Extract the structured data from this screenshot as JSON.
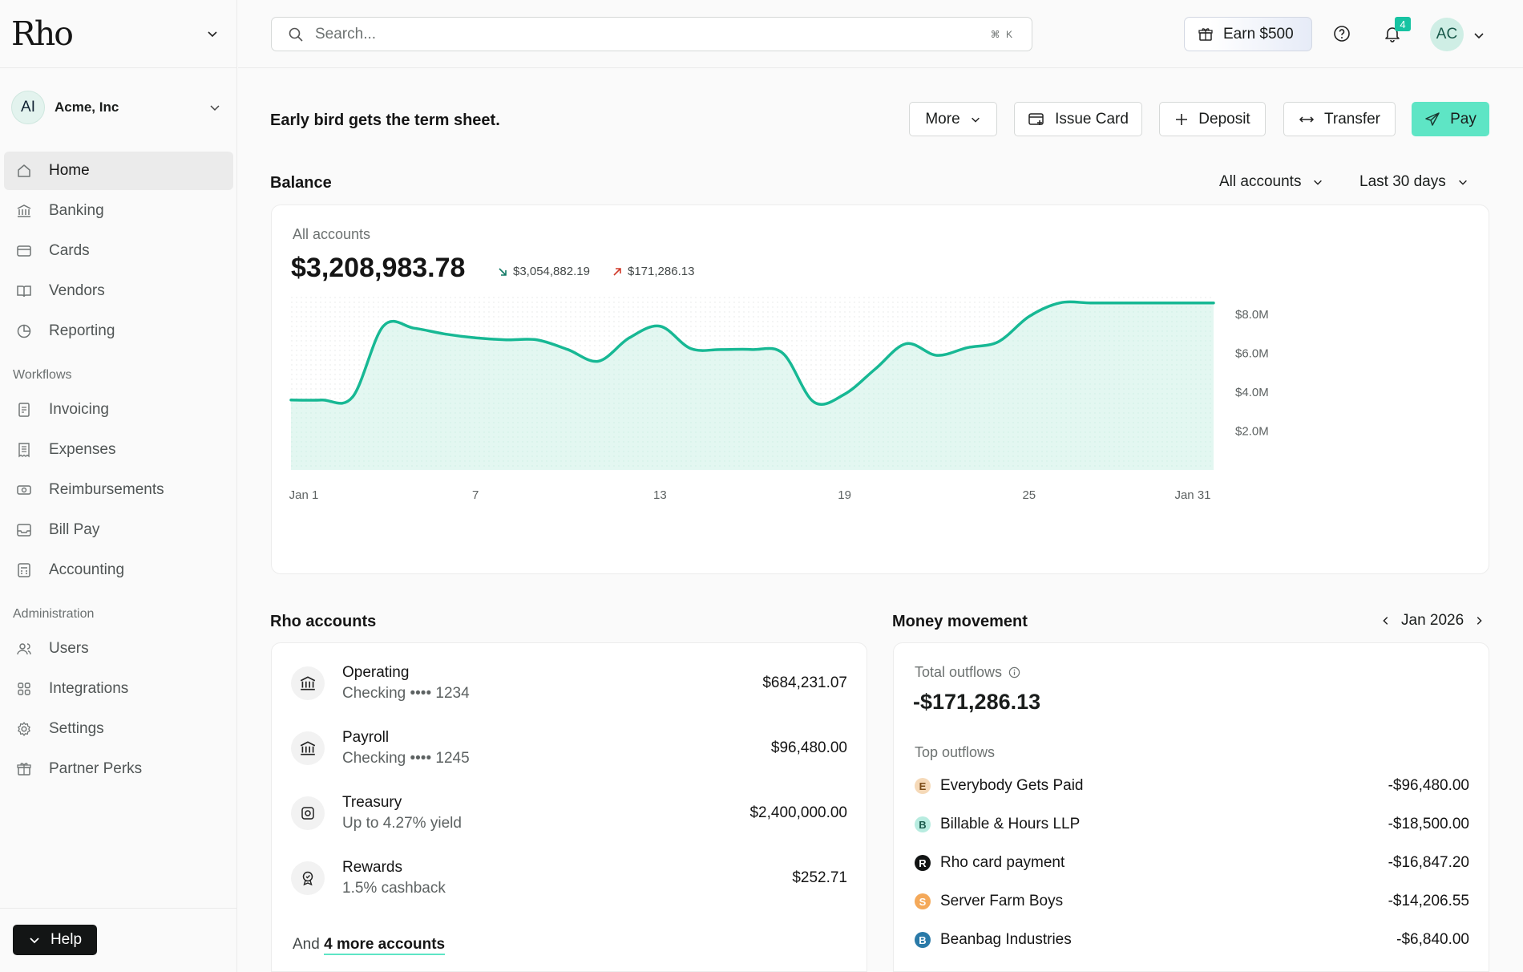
{
  "app": {
    "logo": "Rho"
  },
  "org": {
    "initials": "AI",
    "name": "Acme, Inc"
  },
  "nav": {
    "main": [
      {
        "label": "Home",
        "icon": "home-icon",
        "active": true
      },
      {
        "label": "Banking",
        "icon": "bank-icon"
      },
      {
        "label": "Cards",
        "icon": "card-icon"
      },
      {
        "label": "Vendors",
        "icon": "book-icon"
      },
      {
        "label": "Reporting",
        "icon": "pie-icon"
      }
    ],
    "workflows_title": "Workflows",
    "workflows": [
      {
        "label": "Invoicing",
        "icon": "invoice-icon"
      },
      {
        "label": "Expenses",
        "icon": "receipt-icon"
      },
      {
        "label": "Reimbursements",
        "icon": "reimburse-icon"
      },
      {
        "label": "Bill Pay",
        "icon": "inbox-icon"
      },
      {
        "label": "Accounting",
        "icon": "calculator-icon"
      }
    ],
    "admin_title": "Administration",
    "admin": [
      {
        "label": "Users",
        "icon": "users-icon"
      },
      {
        "label": "Integrations",
        "icon": "grid-icon"
      },
      {
        "label": "Settings",
        "icon": "gear-icon"
      },
      {
        "label": "Partner Perks",
        "icon": "gift-icon"
      }
    ],
    "help_label": "Help"
  },
  "topbar": {
    "search_placeholder": "Search...",
    "search_shortcut": "⌘ K",
    "earn_label": "Earn $500",
    "notification_count": "4",
    "user_initials": "AC"
  },
  "header": {
    "tagline": "Early bird gets the term sheet.",
    "actions": {
      "more": "More",
      "issue_card": "Issue Card",
      "deposit": "Deposit",
      "transfer": "Transfer",
      "pay": "Pay"
    }
  },
  "balance": {
    "title": "Balance",
    "account_filter": "All accounts",
    "range_filter": "Last 30 days",
    "label": "All accounts",
    "amount": "$3,208,983.78",
    "inflow": "$3,054,882.19",
    "outflow": "$171,286.13"
  },
  "chart_data": {
    "type": "area",
    "x_tick_labels": [
      "Jan 1",
      "7",
      "13",
      "19",
      "25",
      "Jan 31"
    ],
    "y_tick_labels": [
      "$8.0M",
      "$6.0M",
      "$4.0M",
      "$2.0M"
    ],
    "ylim": [
      0,
      9.0
    ],
    "x": [
      1,
      2,
      3,
      4,
      5,
      6,
      7,
      8,
      9,
      10,
      11,
      12,
      13,
      14,
      15,
      16,
      17,
      18,
      19,
      20,
      21,
      22,
      23,
      24,
      25,
      26,
      27,
      28,
      29,
      30,
      31
    ],
    "series": [
      {
        "values": [
          3.6,
          3.6,
          3.75,
          7.4,
          7.3,
          7.0,
          6.8,
          6.7,
          6.7,
          6.2,
          5.6,
          6.8,
          7.4,
          6.25,
          6.2,
          6.2,
          6.0,
          3.5,
          3.9,
          5.2,
          6.5,
          5.9,
          6.3,
          6.6,
          7.9,
          8.6,
          8.6,
          8.6,
          8.6,
          8.6,
          8.6
        ]
      }
    ],
    "color": "#17b894"
  },
  "accounts": {
    "title": "Rho accounts",
    "items": [
      {
        "name": "Operating",
        "sub": "Checking •••• 1234",
        "amount": "$684,231.07",
        "icon": "bank-icon"
      },
      {
        "name": "Payroll",
        "sub": "Checking •••• 1245",
        "amount": "$96,480.00",
        "icon": "bank-icon"
      },
      {
        "name": "Treasury",
        "sub": "Up to 4.27% yield",
        "amount": "$2,400,000.00",
        "icon": "treasury-icon"
      },
      {
        "name": "Rewards",
        "sub": "1.5% cashback",
        "amount": "$252.71",
        "icon": "award-icon"
      }
    ],
    "more_prefix": "And",
    "more_link": "4 more accounts"
  },
  "money_movement": {
    "title": "Money movement",
    "period": "Jan 2026",
    "total_label": "Total outflows",
    "total_amount": "-$171,286.13",
    "top_label": "Top outflows",
    "items": [
      {
        "letter": "E",
        "name": "Everybody Gets Paid",
        "amount": "-$96,480.00",
        "bg": "#f5d9b8",
        "fg": "#7a4b16"
      },
      {
        "letter": "B",
        "name": "Billable & Hours LLP",
        "amount": "-$18,500.00",
        "bg": "#b8ece0",
        "fg": "#1b5a4c"
      },
      {
        "letter": "R",
        "name": "Rho card payment",
        "amount": "-$16,847.20",
        "bg": "#121414",
        "fg": "#ffffff"
      },
      {
        "letter": "S",
        "name": "Server Farm Boys",
        "amount": "-$14,206.55",
        "bg": "#f4a95a",
        "fg": "#ffffff"
      },
      {
        "letter": "B",
        "name": "Beanbag Industries",
        "amount": "-$6,840.00",
        "bg": "#2a7aa8",
        "fg": "#ffffff"
      }
    ]
  }
}
